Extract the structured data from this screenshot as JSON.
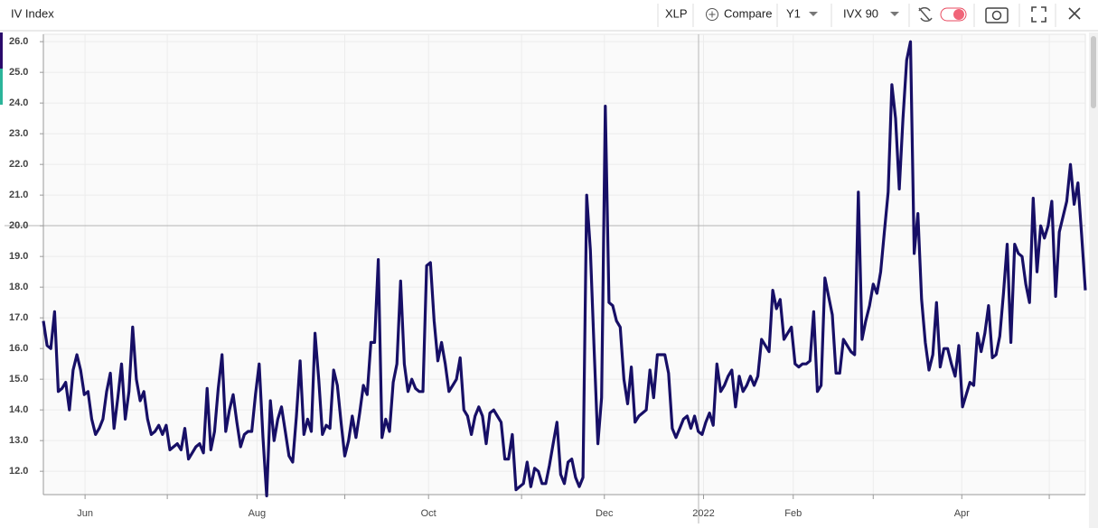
{
  "toolbar": {
    "title": "IV Index",
    "symbol": "XLP",
    "compare": "Compare",
    "period": "Y1",
    "measure": "IVX 90"
  },
  "chart_data": {
    "type": "line",
    "series": [
      {
        "color": "#170f66",
        "values": [
          16.9,
          16.1,
          16.0,
          17.2,
          14.6,
          14.7,
          14.9,
          14.0,
          15.3,
          15.8,
          15.3,
          14.5,
          14.6,
          13.7,
          13.2,
          13.4,
          13.7,
          14.6,
          15.2,
          13.4,
          14.4,
          15.5,
          13.7,
          14.6,
          16.7,
          15.0,
          14.3,
          14.6,
          13.7,
          13.2,
          13.3,
          13.5,
          13.2,
          13.5,
          12.7,
          12.8,
          12.9,
          12.7,
          13.4,
          12.4,
          12.6,
          12.8,
          12.9,
          12.6,
          14.7,
          12.7,
          13.3,
          14.7,
          15.8,
          13.3,
          14.0,
          14.5,
          13.6,
          12.8,
          13.2,
          13.3,
          13.3,
          14.5,
          15.5,
          13.1,
          11.2,
          14.3,
          13.0,
          13.7,
          14.1,
          13.3,
          12.5,
          12.3,
          13.8,
          15.6,
          13.2,
          13.7,
          13.3,
          16.5,
          15.0,
          13.2,
          13.5,
          13.4,
          15.3,
          14.8,
          13.6,
          12.5,
          13.0,
          13.8,
          13.1,
          13.9,
          14.8,
          14.5,
          16.2,
          16.2,
          18.9,
          13.1,
          13.7,
          13.3,
          14.9,
          15.5,
          18.2,
          15.5,
          14.6,
          15.0,
          14.7,
          14.6,
          14.6,
          18.7,
          18.8,
          16.9,
          15.6,
          16.2,
          15.5,
          14.6,
          14.8,
          15.0,
          15.7,
          14.0,
          13.8,
          13.2,
          13.8,
          14.1,
          13.8,
          12.9,
          13.9,
          14.0,
          13.8,
          13.6,
          12.4,
          12.4,
          13.2,
          11.4,
          11.5,
          11.6,
          12.3,
          11.5,
          12.1,
          12.0,
          11.6,
          11.6,
          12.2,
          12.9,
          13.6,
          11.9,
          11.6,
          12.3,
          12.4,
          11.8,
          11.5,
          11.8,
          21.0,
          19.2,
          16.0,
          12.9,
          14.4,
          23.9,
          17.5,
          17.4,
          16.9,
          16.7,
          15.0,
          14.2,
          15.4,
          13.6,
          13.8,
          13.9,
          14.0,
          15.3,
          14.4,
          15.8,
          15.8,
          15.8,
          15.2,
          13.4,
          13.1,
          13.4,
          13.7,
          13.8,
          13.4,
          13.8,
          13.3,
          13.2,
          13.6,
          13.9,
          13.5,
          15.5,
          14.6,
          14.8,
          15.1,
          15.3,
          14.1,
          15.1,
          14.6,
          14.8,
          15.1,
          14.8,
          15.1,
          16.3,
          16.1,
          15.9,
          17.9,
          17.3,
          17.6,
          16.3,
          16.5,
          16.7,
          15.5,
          15.4,
          15.5,
          15.5,
          15.6,
          17.2,
          14.6,
          14.8,
          18.3,
          17.7,
          17.1,
          15.2,
          15.2,
          16.3,
          16.1,
          15.9,
          15.8,
          21.1,
          16.3,
          16.9,
          17.4,
          18.1,
          17.8,
          18.5,
          19.8,
          21.1,
          24.6,
          23.5,
          21.2,
          23.5,
          25.4,
          26.0,
          19.1,
          20.4,
          17.6,
          16.2,
          15.3,
          15.8,
          17.5,
          15.4,
          16.0,
          16.0,
          15.5,
          15.1,
          16.1,
          14.1,
          14.5,
          14.9,
          14.8,
          16.5,
          15.9,
          16.5,
          17.4,
          15.7,
          15.8,
          16.4,
          17.8,
          19.4,
          16.2,
          19.4,
          19.1,
          19.0,
          18.1,
          17.5,
          20.9,
          18.5,
          20.0,
          19.6,
          20.0,
          20.8,
          17.7,
          19.8,
          20.3,
          20.8,
          22.0,
          20.7,
          21.4,
          19.7,
          17.9
        ]
      }
    ],
    "xlim": [
      0,
      280
    ],
    "xticks": [
      {
        "value": 11.2,
        "label": "Jun"
      },
      {
        "value": 33.3,
        "label": null
      },
      {
        "value": 57.4,
        "label": "Aug"
      },
      {
        "value": 81,
        "label": null
      },
      {
        "value": 103.5,
        "label": "Oct"
      },
      {
        "value": 128.5,
        "label": null
      },
      {
        "value": 150.75,
        "label": "Dec"
      },
      {
        "value": 177.4,
        "label": "2022"
      },
      {
        "value": 201.5,
        "label": "Feb"
      },
      {
        "value": 223,
        "label": null
      },
      {
        "value": 246.8,
        "label": "Apr"
      },
      {
        "value": 270.3,
        "label": null
      }
    ],
    "ylim": [
      11.24,
      26.24
    ],
    "yticks": [
      {
        "value": 12,
        "label": "12.0"
      },
      {
        "value": 13,
        "label": "13.0"
      },
      {
        "value": 14,
        "label": "14.0"
      },
      {
        "value": 15,
        "label": "15.0"
      },
      {
        "value": 16,
        "label": "16.0"
      },
      {
        "value": 17,
        "label": "17.0"
      },
      {
        "value": 18,
        "label": "18.0"
      },
      {
        "value": 19,
        "label": "19.0"
      },
      {
        "value": 20,
        "label": "20.0"
      },
      {
        "value": 21,
        "label": "21.0"
      },
      {
        "value": 22,
        "label": "22.0"
      },
      {
        "value": 23,
        "label": "23.0"
      },
      {
        "value": 24,
        "label": "24.0"
      },
      {
        "value": 25,
        "label": "25.0"
      },
      {
        "value": 26,
        "label": "26.0"
      }
    ],
    "grid": true
  }
}
